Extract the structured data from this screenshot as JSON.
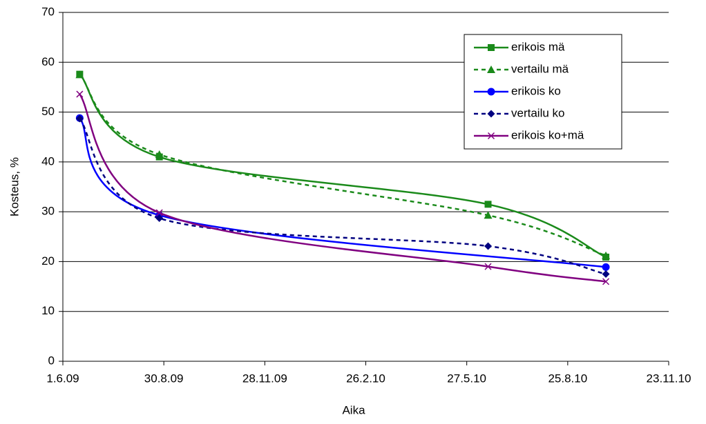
{
  "chart_data": {
    "type": "line",
    "x_label": "Aika",
    "y_label": "Kosteus, %",
    "x": [
      "2009-06-16",
      "2009-08-26",
      "2010-06-15",
      "2010-09-28"
    ],
    "xlim": [
      "2009-06-01",
      "2010-11-23"
    ],
    "xticks": [
      {
        "value": "2009-06-01",
        "label": "1.6.09"
      },
      {
        "value": "2009-08-30",
        "label": "30.8.09"
      },
      {
        "value": "2009-11-28",
        "label": "28.11.09"
      },
      {
        "value": "2010-02-26",
        "label": "26.2.10"
      },
      {
        "value": "2010-05-27",
        "label": "27.5.10"
      },
      {
        "value": "2010-08-25",
        "label": "25.8.10"
      },
      {
        "value": "2010-11-23",
        "label": "23.11.10"
      }
    ],
    "ylim": [
      0,
      70
    ],
    "yticks": [
      0,
      10,
      20,
      30,
      40,
      50,
      60,
      70
    ],
    "grid": true,
    "legend": "top-right",
    "smooth": true,
    "series": [
      {
        "name": "erikois mä",
        "color": "#1a8a1a",
        "marker": "square",
        "dash": false,
        "values": [
          57.6,
          41.0,
          31.5,
          20.9
        ]
      },
      {
        "name": "vertailu mä",
        "color": "#1a8a1a",
        "marker": "triangle",
        "dash": true,
        "values": [
          57.5,
          41.5,
          29.3,
          21.2
        ]
      },
      {
        "name": "erikois ko",
        "color": "#0000ff",
        "marker": "circle",
        "dash": false,
        "x": [
          "2009-06-16",
          "2009-08-26",
          "2010-09-28"
        ],
        "values": [
          48.8,
          29.3,
          18.9
        ]
      },
      {
        "name": "vertailu ko",
        "color": "#000080",
        "marker": "diamond",
        "dash": true,
        "values": [
          48.7,
          28.7,
          23.1,
          17.5
        ]
      },
      {
        "name": "erikois ko+mä",
        "color": "#800080",
        "marker": "x",
        "dash": false,
        "values": [
          53.6,
          29.8,
          19.0,
          16.0
        ]
      }
    ]
  }
}
